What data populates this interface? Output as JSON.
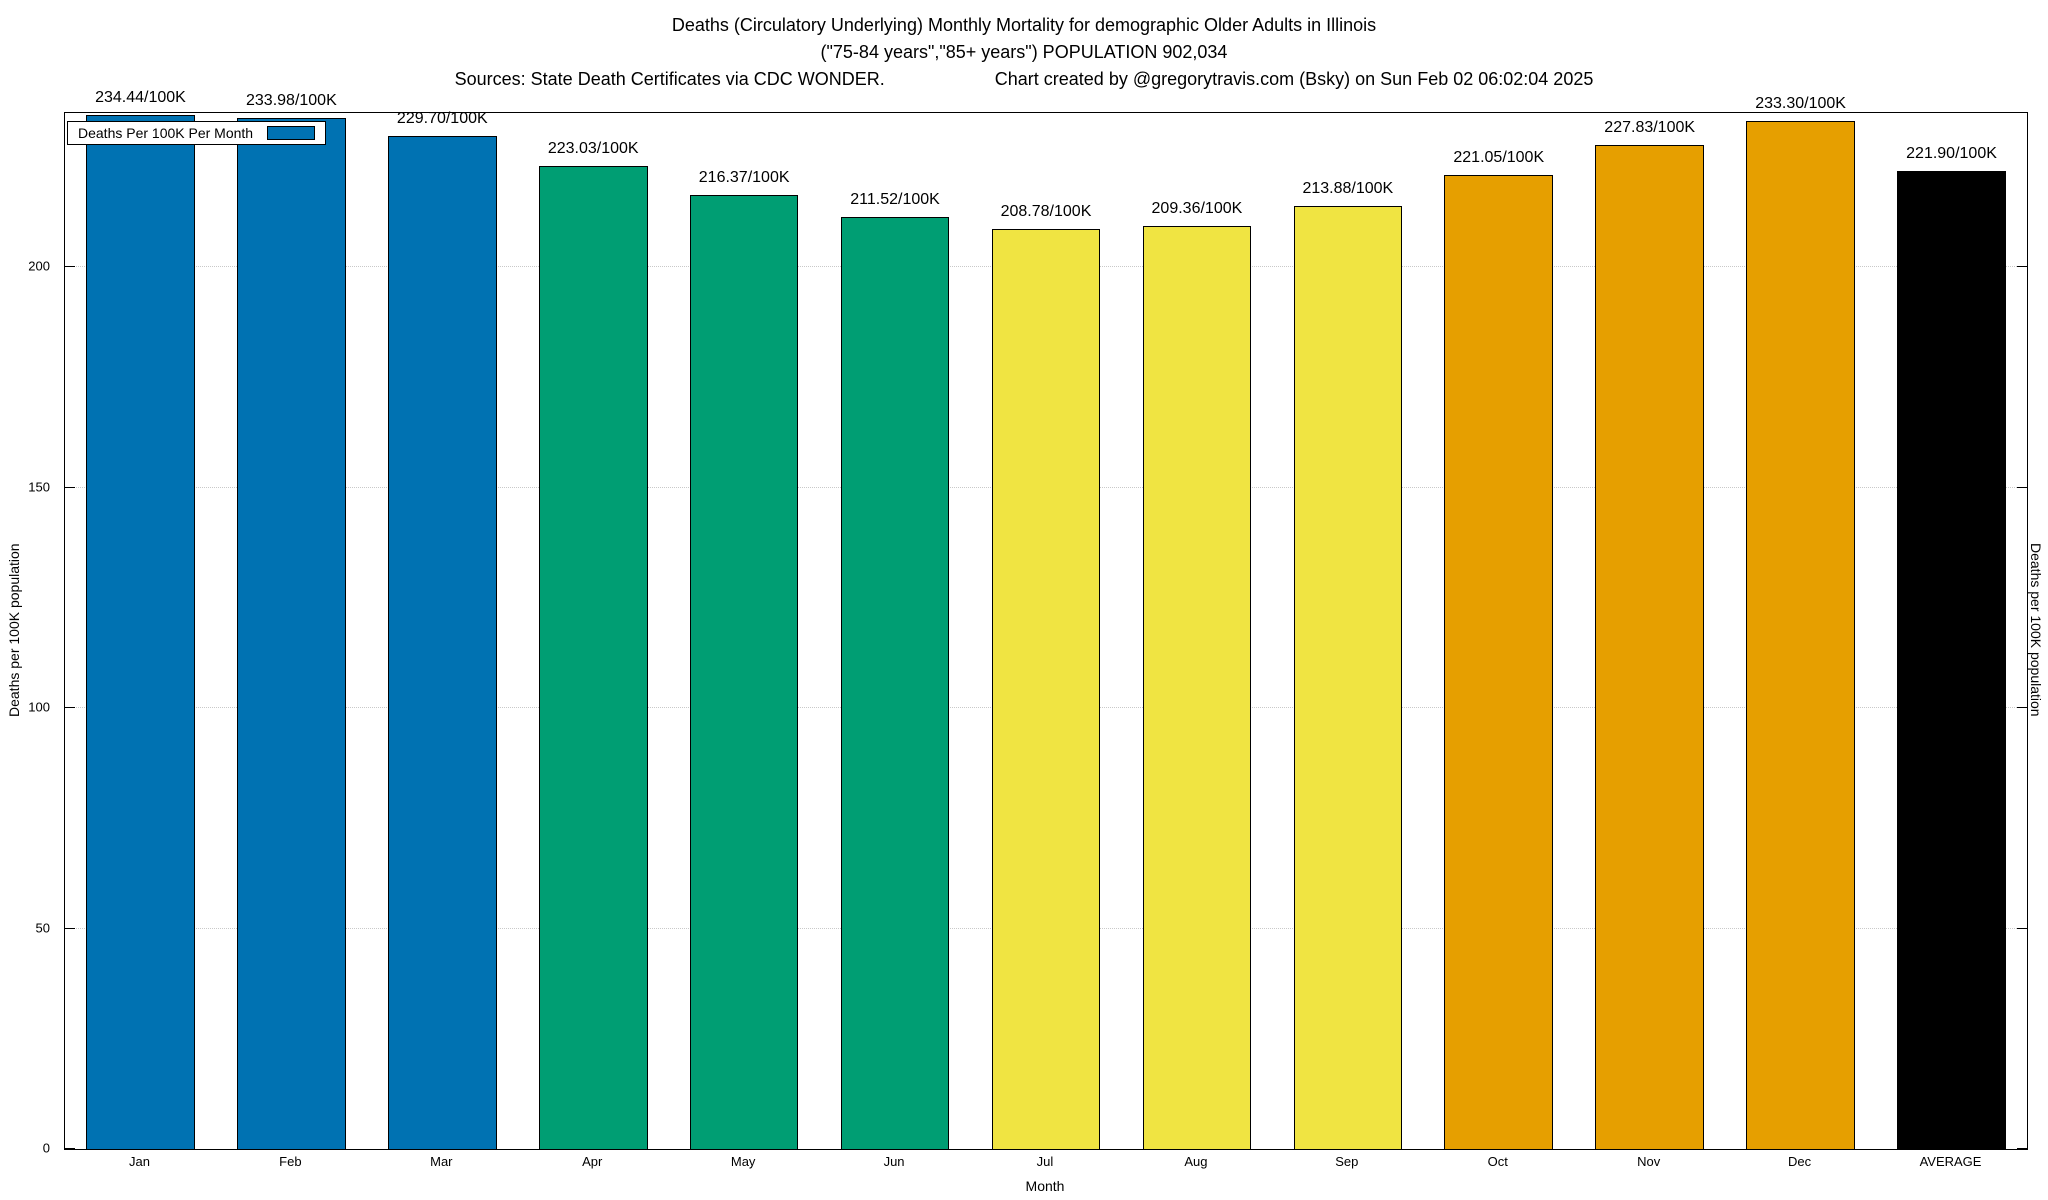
{
  "title": {
    "line1": "Deaths (Circulatory Underlying) Monthly Mortality for demographic Older Adults in Illinois",
    "line2": "(\"75-84 years\",\"85+ years\") POPULATION 902,034",
    "sources": "Sources: State Death Certificates via CDC WONDER.",
    "credit": "Chart created by @gregorytravis.com (Bsky) on Sun Feb 02 06:02:04 2025"
  },
  "legend": {
    "label": "Deaths Per 100K Per Month",
    "swatch_color": "#0072B2"
  },
  "axes": {
    "x_label": "Month",
    "y_left_label": "Deaths per 100K population",
    "y_right_label": "Deaths per 100K population",
    "y_ticks": [
      0,
      50,
      100,
      150,
      200
    ]
  },
  "chart_data": {
    "type": "bar",
    "title": "Deaths (Circulatory Underlying) Monthly Mortality for demographic Older Adults in Illinois",
    "xlabel": "Month",
    "ylabel": "Deaths per 100K population",
    "ylim": [
      0,
      235
    ],
    "grid": true,
    "legend_position": "top-left",
    "categories": [
      "Jan",
      "Feb",
      "Mar",
      "Apr",
      "May",
      "Jun",
      "Jul",
      "Aug",
      "Sep",
      "Oct",
      "Nov",
      "Dec",
      "AVERAGE"
    ],
    "values": [
      234.44,
      233.98,
      229.7,
      223.03,
      216.37,
      211.52,
      208.78,
      209.36,
      213.88,
      221.05,
      227.83,
      233.3,
      221.9
    ],
    "value_labels": [
      "234.44/100K",
      "233.98/100K",
      "229.70/100K",
      "223.03/100K",
      "216.37/100K",
      "211.52/100K",
      "208.78/100K",
      "209.36/100K",
      "213.88/100K",
      "221.05/100K",
      "227.83/100K",
      "233.30/100K",
      "221.90/100K"
    ],
    "colors": [
      "#0072B2",
      "#0072B2",
      "#0072B2",
      "#009E73",
      "#009E73",
      "#009E73",
      "#F0E442",
      "#F0E442",
      "#F0E442",
      "#E69F00",
      "#E69F00",
      "#E69F00",
      "#000000"
    ]
  }
}
